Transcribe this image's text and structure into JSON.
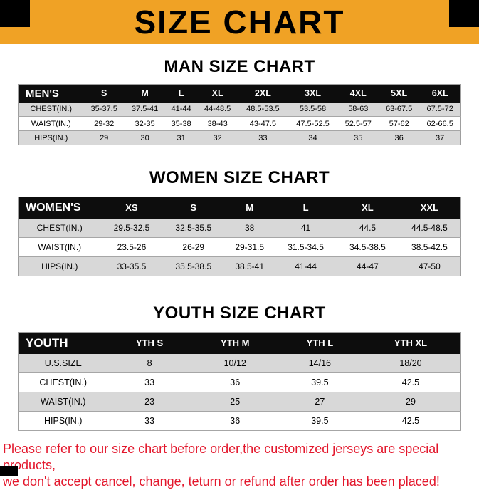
{
  "banner": {
    "title": "SIZE CHART"
  },
  "sections": [
    {
      "heading": "MAN SIZE CHART",
      "table": {
        "header": [
          "MEN'S",
          "S",
          "M",
          "L",
          "XL",
          "2XL",
          "3XL",
          "4XL",
          "5XL",
          "6XL"
        ],
        "rows": [
          [
            "CHEST(IN.)",
            "35-37.5",
            "37.5-41",
            "41-44",
            "44-48.5",
            "48.5-53.5",
            "53.5-58",
            "58-63",
            "63-67.5",
            "67.5-72"
          ],
          [
            "WAIST(IN.)",
            "29-32",
            "32-35",
            "35-38",
            "38-43",
            "43-47.5",
            "47.5-52.5",
            "52.5-57",
            "57-62",
            "62-66.5"
          ],
          [
            "HIPS(IN.)",
            "29",
            "30",
            "31",
            "32",
            "33",
            "34",
            "35",
            "36",
            "37"
          ]
        ]
      }
    },
    {
      "heading": "WOMEN SIZE CHART",
      "table": {
        "header": [
          "WOMEN'S",
          "XS",
          "S",
          "M",
          "L",
          "XL",
          "XXL"
        ],
        "rows": [
          [
            "CHEST(IN.)",
            "29.5-32.5",
            "32.5-35.5",
            "38",
            "41",
            "44.5",
            "44.5-48.5"
          ],
          [
            "WAIST(IN.)",
            "23.5-26",
            "26-29",
            "29-31.5",
            "31.5-34.5",
            "34.5-38.5",
            "38.5-42.5"
          ],
          [
            "HIPS(IN.)",
            "33-35.5",
            "35.5-38.5",
            "38.5-41",
            "41-44",
            "44-47",
            "47-50"
          ]
        ]
      }
    },
    {
      "heading": "YOUTH SIZE CHART",
      "table": {
        "header": [
          "YOUTH",
          "YTH S",
          "YTH M",
          "YTH L",
          "YTH XL"
        ],
        "rows": [
          [
            "U.S.SIZE",
            "8",
            "10/12",
            "14/16",
            "18/20"
          ],
          [
            "CHEST(IN.)",
            "33",
            "36",
            "39.5",
            "42.5"
          ],
          [
            "WAIST(IN.)",
            "23",
            "25",
            "27",
            "29"
          ],
          [
            "HIPS(IN.)",
            "33",
            "36",
            "39.5",
            "42.5"
          ]
        ]
      }
    }
  ],
  "footer": {
    "line1": "Please refer to our size chart before order,the customized jerseys are special products,",
    "line2": "we don't accept cancel, change, teturn or refund after order has been placed!"
  },
  "colors": {
    "banner_bg": "#F0A225",
    "table_header_bg": "#0D0D0D",
    "row_alt_bg": "#D8D8D8",
    "footer_red": "#E3172C"
  }
}
